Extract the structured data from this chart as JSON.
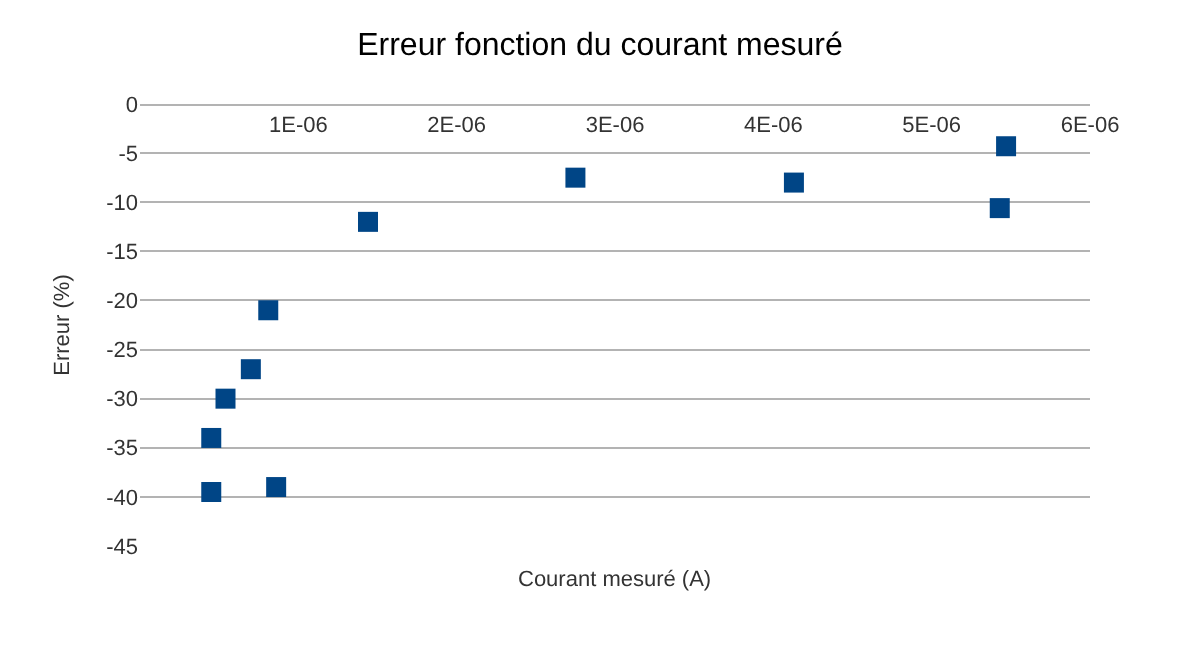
{
  "chart_data": {
    "type": "scatter",
    "title": "Erreur fonction du courant mesuré",
    "xlabel": "Courant mesuré (A)",
    "ylabel": "Erreur (%)",
    "x": [
      4.5e-07,
      4.5e-07,
      5.4e-07,
      7e-07,
      8.1e-07,
      8.6e-07,
      1.44e-06,
      2.75e-06,
      4.13e-06,
      5.43e-06,
      5.47e-06
    ],
    "series": [
      {
        "color": "#004586",
        "values": [
          -39.5,
          -34,
          -30,
          -27,
          -21,
          -39,
          -12,
          -7.5,
          -8,
          -10.6,
          -4.3
        ]
      }
    ],
    "xlim": [
      0,
      6e-06
    ],
    "xticks": [
      {
        "value": 1e-06,
        "label": "1E-06"
      },
      {
        "value": 2e-06,
        "label": "2E-06"
      },
      {
        "value": 3e-06,
        "label": "3E-06"
      },
      {
        "value": 4e-06,
        "label": "4E-06"
      },
      {
        "value": 5e-06,
        "label": "5E-06"
      },
      {
        "value": 6e-06,
        "label": "6E-06"
      }
    ],
    "ylim": [
      -45,
      0
    ],
    "yticks": [
      0,
      -5,
      -10,
      -15,
      -20,
      -25,
      -30,
      -35,
      -40,
      -45
    ],
    "grid": "y",
    "marker": "square"
  }
}
